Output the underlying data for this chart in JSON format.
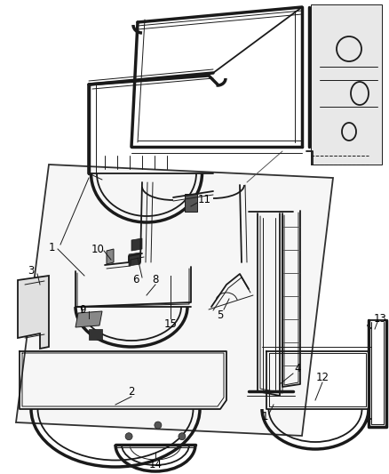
{
  "background_color": "#ffffff",
  "line_color": "#1a1a1a",
  "label_color": "#000000",
  "label_font_size": 8.5,
  "fig_width": 4.38,
  "fig_height": 5.33,
  "dpi": 100
}
